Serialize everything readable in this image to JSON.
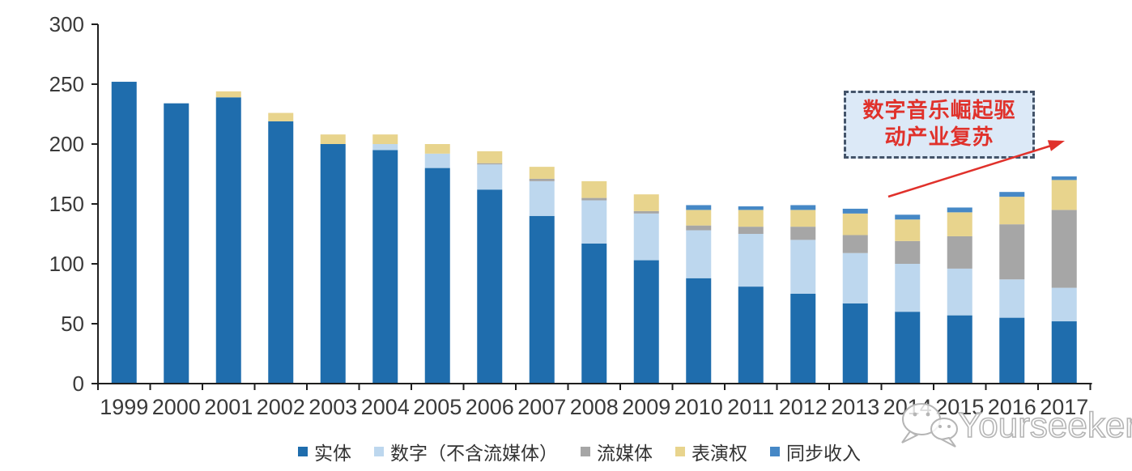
{
  "chart_data": {
    "type": "bar",
    "stacked": true,
    "title": "",
    "xlabel": "",
    "ylabel": "",
    "categories": [
      "1999",
      "2000",
      "2001",
      "2002",
      "2003",
      "2004",
      "2005",
      "2006",
      "2007",
      "2008",
      "2009",
      "2010",
      "2011",
      "2012",
      "2013",
      "2014",
      "2015",
      "2016",
      "2017"
    ],
    "series": [
      {
        "name": "实体",
        "color": "#1F6DAD",
        "values": [
          252,
          234,
          239,
          219,
          200,
          195,
          180,
          162,
          140,
          117,
          103,
          88,
          81,
          75,
          67,
          60,
          57,
          55,
          52
        ]
      },
      {
        "name": "数字（不含流媒体）",
        "color": "#BDD7EE",
        "values": [
          0,
          0,
          0,
          0,
          0,
          5,
          12,
          21,
          29,
          36,
          39,
          40,
          44,
          45,
          42,
          40,
          39,
          32,
          28
        ]
      },
      {
        "name": "流媒体",
        "color": "#A6A6A6",
        "values": [
          0,
          0,
          0,
          0,
          0,
          0,
          0,
          1,
          2,
          2,
          2,
          4,
          6,
          11,
          15,
          19,
          27,
          46,
          65
        ]
      },
      {
        "name": "表演权",
        "color": "#E8D48D",
        "values": [
          0,
          0,
          5,
          7,
          8,
          8,
          8,
          10,
          10,
          14,
          14,
          13,
          14,
          14,
          18,
          18,
          20,
          23,
          25
        ]
      },
      {
        "name": "同步收入",
        "color": "#4688C6",
        "values": [
          0,
          0,
          0,
          0,
          0,
          0,
          0,
          0,
          0,
          0,
          0,
          4,
          3,
          4,
          4,
          4,
          4,
          4,
          3
        ]
      }
    ],
    "totals": [
      252,
      234,
      244,
      226,
      208,
      208,
      200,
      194,
      181,
      169,
      158,
      149,
      148,
      149,
      146,
      141,
      147,
      160,
      173
    ],
    "ylim": [
      0,
      300
    ],
    "yticks": [
      0,
      50,
      100,
      150,
      200,
      250,
      300
    ],
    "grid": false,
    "legend_position": "bottom",
    "axis_color": "#1f1f1f",
    "tick_label_color": "#3a3a3a"
  },
  "annotation": {
    "line1": "数字音乐崛起驱",
    "line2": "动产业复苏",
    "text_color": "#E0312B",
    "border_color": "#44546A",
    "fill_color": "#DCE9F7",
    "arrow_color": "#E0312B"
  },
  "watermark": {
    "text": "Yourseeker",
    "icon": "wechat-icon",
    "color": "#b5b5b5"
  }
}
